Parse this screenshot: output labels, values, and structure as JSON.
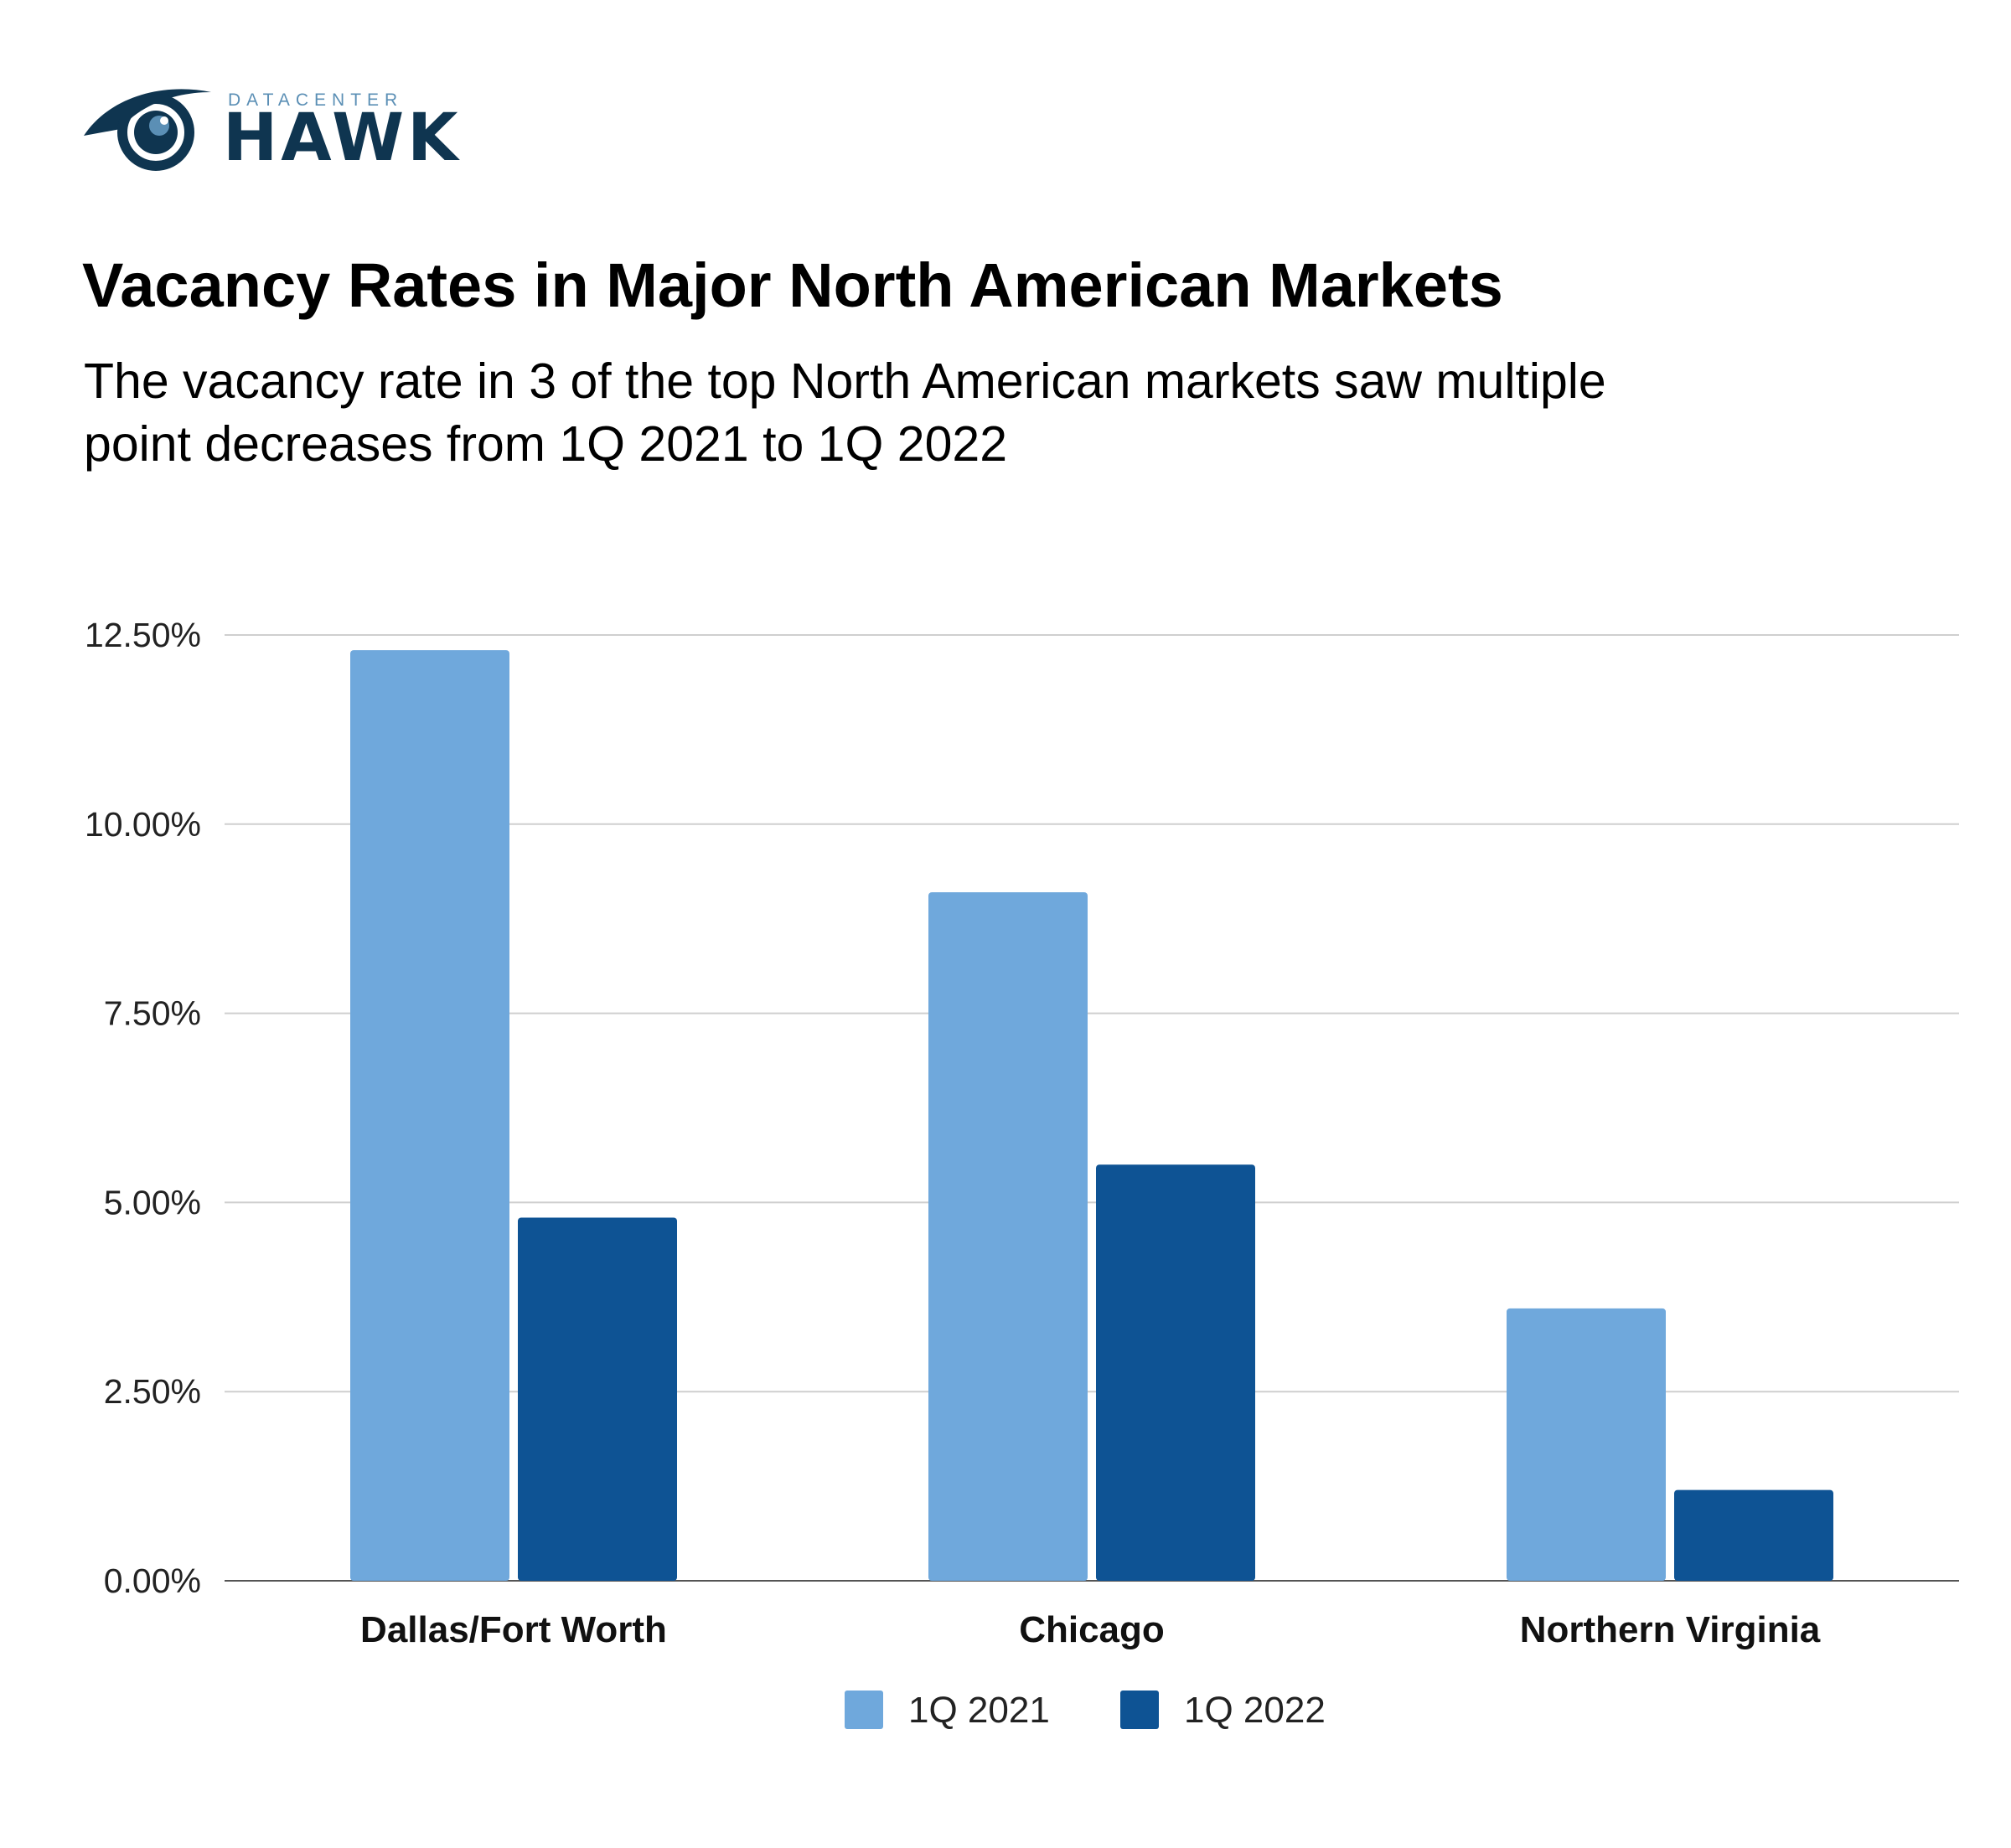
{
  "brand": {
    "logo_top_text": "DATACENTER",
    "logo_main_text": "HAWK",
    "logo_color": "#0f3550"
  },
  "chart_data": {
    "type": "bar",
    "title": "Vacancy Rates in Major North American Markets",
    "subtitle_lines": [
      "The vacancy rate in 3 of the top North American markets saw multiple",
      "point decreases from 1Q 2021 to 1Q 2022"
    ],
    "categories": [
      "Dallas/Fort Worth",
      "Chicago",
      "Northern Virginia"
    ],
    "series": [
      {
        "name": "1Q 2021",
        "color": "#6fa8dc",
        "values": [
          12.3,
          9.1,
          3.6
        ]
      },
      {
        "name": "1Q 2022",
        "color": "#0e5394",
        "values": [
          4.8,
          5.5,
          1.2
        ]
      }
    ],
    "ylim": [
      0,
      12.5
    ],
    "y_ticks": [
      0,
      2.5,
      5,
      7.5,
      10,
      12.5
    ],
    "y_tick_labels": [
      "0.00%",
      "2.50%",
      "5.00%",
      "7.50%",
      "10.00%",
      "12.50%"
    ],
    "grid": true,
    "legend_position": "bottom"
  }
}
